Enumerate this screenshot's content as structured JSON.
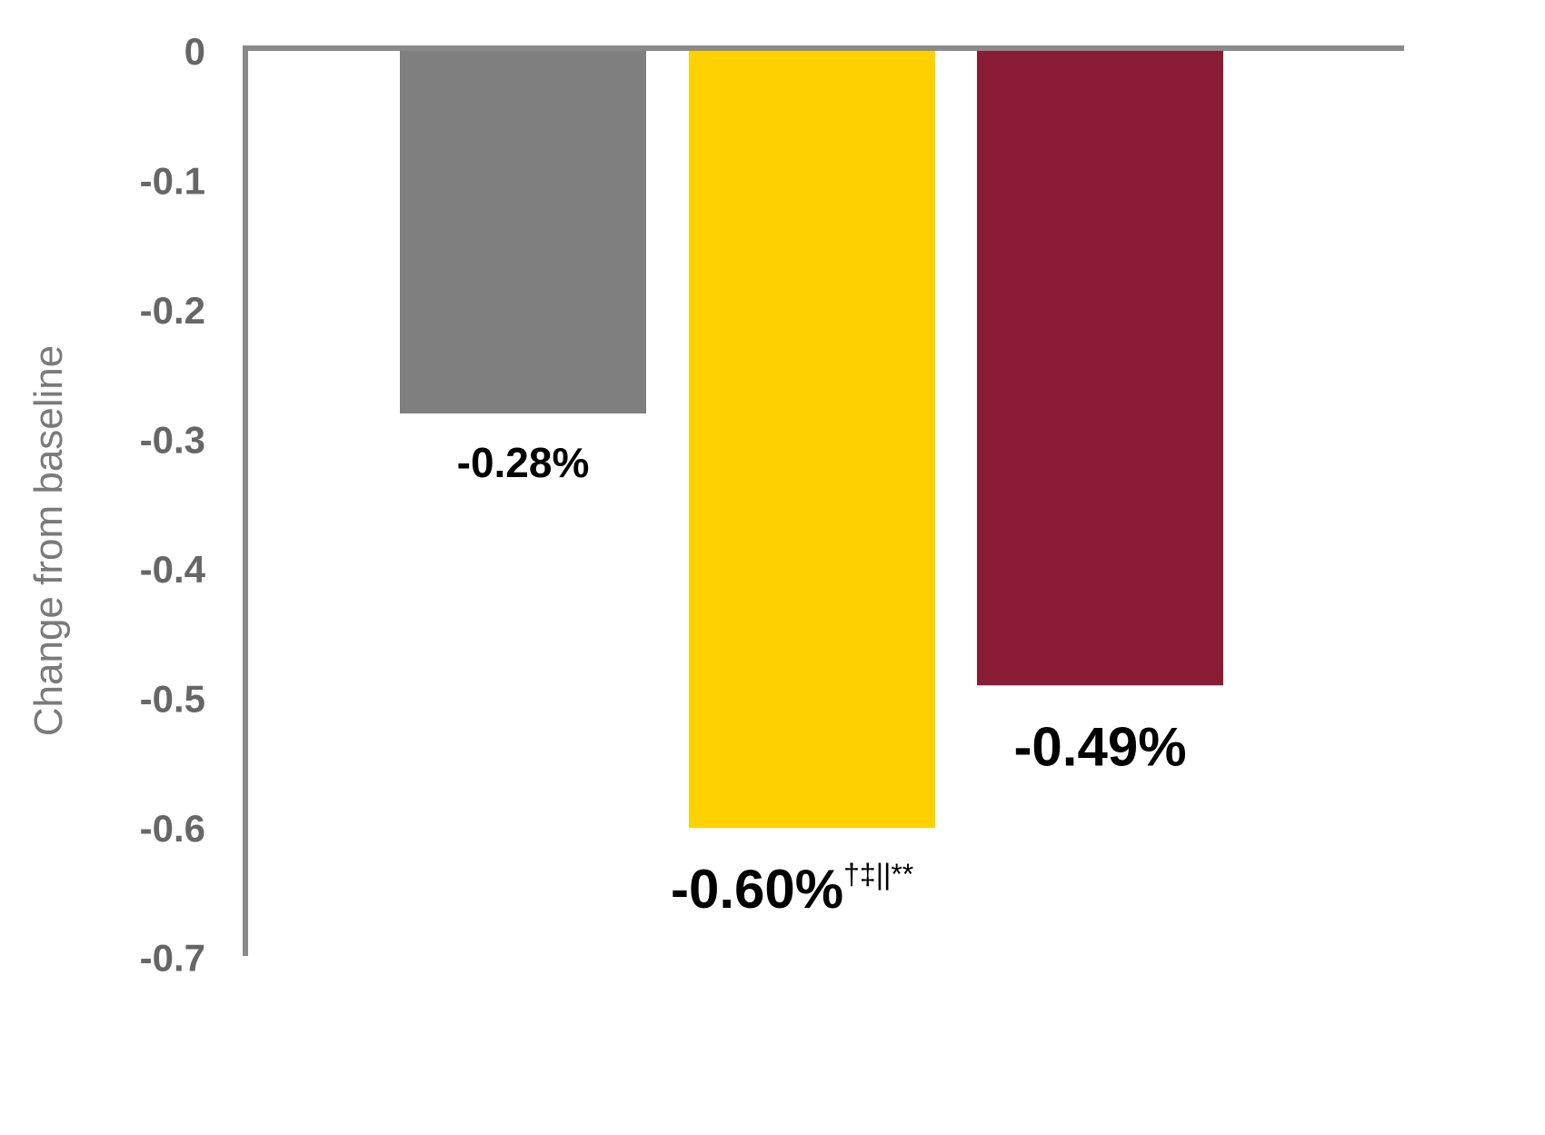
{
  "chart_data": {
    "type": "bar",
    "title": "",
    "xlabel": "",
    "ylabel": "Change from baseline",
    "ylim": [
      -0.7,
      0
    ],
    "yticks": [
      "0",
      "-0.1",
      "-0.2",
      "-0.3",
      "-0.4",
      "-0.5",
      "-0.6",
      "-0.7"
    ],
    "grid": false,
    "legend": "none",
    "values": [
      -0.28,
      -0.6,
      -0.49
    ],
    "colors": [
      "#7f7f7f",
      "#ffd100",
      "#8a1c35"
    ],
    "data_labels": [
      {
        "text": "-0.28%",
        "sup": ""
      },
      {
        "text": "-0.60%",
        "sup": "†‡||**"
      },
      {
        "text": "-0.49%",
        "sup": ""
      }
    ]
  }
}
